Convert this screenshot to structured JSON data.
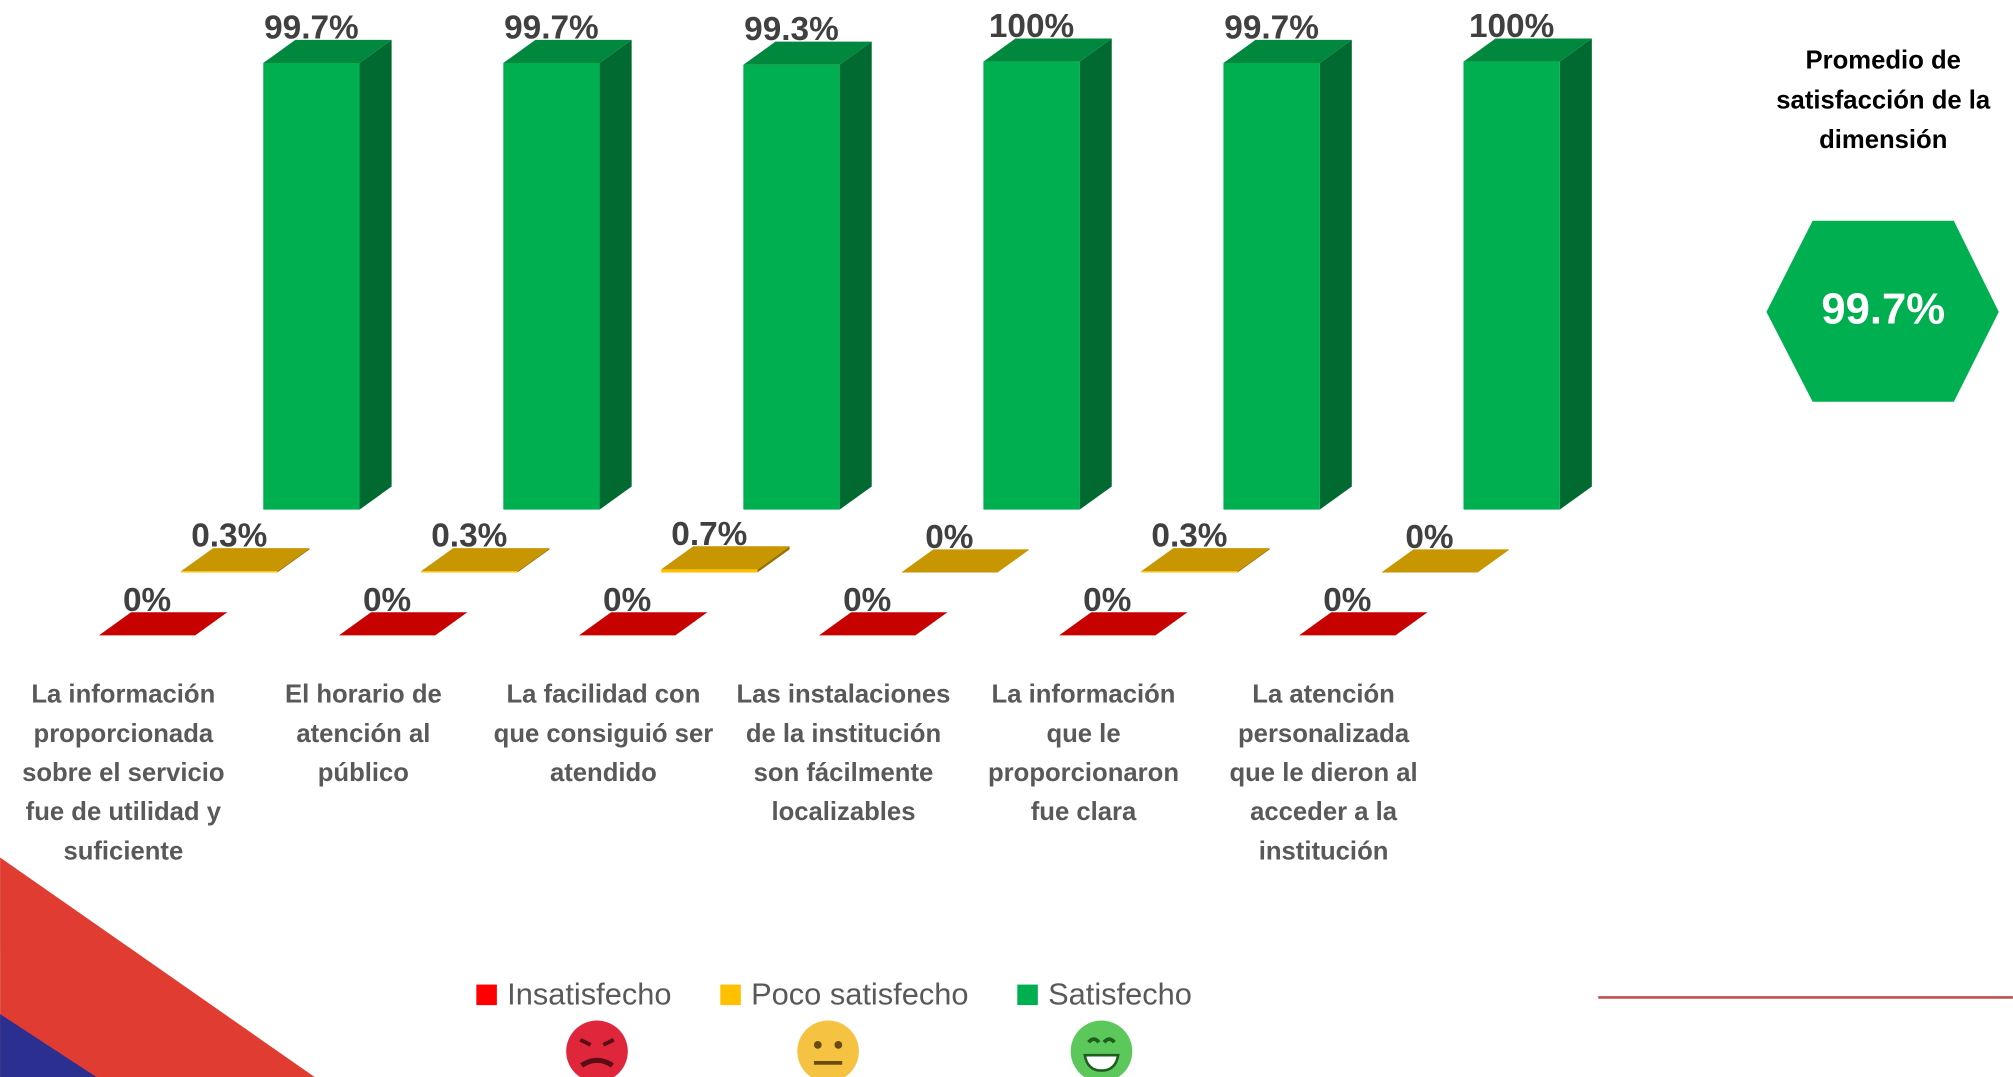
{
  "chart_data": {
    "type": "bar3d",
    "categories": [
      "La información proporcionada sobre el servicio fue de utilidad y suficiente",
      "El horario de atención al público",
      "La facilidad con que consiguió ser atendido",
      "Las instalaciones de la institución son fácilmente localizables",
      "La información que le proporcionaron fue clara",
      "La atención personalizada que le dieron al acceder a la institución"
    ],
    "series": [
      {
        "name": "Insatisfecho",
        "color": "#ff0000",
        "values": [
          0,
          0,
          0,
          0,
          0,
          0
        ],
        "value_labels": [
          "0%",
          "0%",
          "0%",
          "0%",
          "0%",
          "0%"
        ]
      },
      {
        "name": "Poco satisfecho",
        "color": "#ffc000",
        "values": [
          0.3,
          0.3,
          0.7,
          0,
          0.3,
          0
        ],
        "value_labels": [
          "0.3%",
          "0.3%",
          "0.7%",
          "0%",
          "0.3%",
          "0%"
        ]
      },
      {
        "name": "Satisfecho",
        "color": "#00b050",
        "values": [
          99.7,
          99.7,
          99.3,
          100,
          99.7,
          100
        ],
        "value_labels": [
          "99.7%",
          "99.7%",
          "99.3%",
          "100%",
          "99.7%",
          "100%"
        ]
      }
    ]
  },
  "summary": {
    "title": "Promedio de satisfacción de la dimensión",
    "value": 99.7,
    "value_label": "99.7%",
    "color": "#00b050"
  }
}
